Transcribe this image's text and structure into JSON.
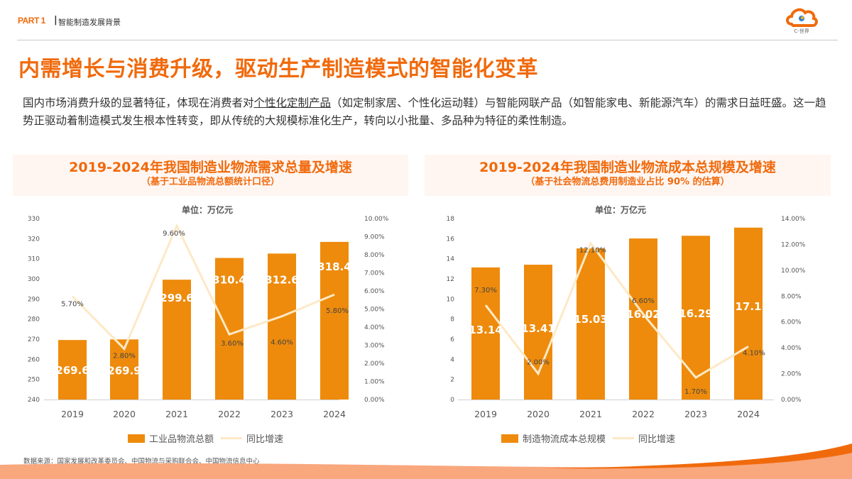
{
  "header": {
    "part": "PART 1",
    "separator": "|",
    "section": "智能制造发展背景"
  },
  "logo": {
    "text": "C-世界"
  },
  "title": "内需增长与消费升级，驱动生产制造模式的智能化变革",
  "paragraph": {
    "before": "国内市场消费升级的显著特征，体现在消费者对",
    "underlined": "个性化定制产品",
    "after": "（如定制家居、个性化运动鞋）与智能网联产品（如智能家电、新能源汽车）的需求日益旺盛。这一趋势正驱动着制造模式发生根本性转变，即从传统的大规模标准化生产，转向以小批量、多品种为特征的柔性制造。"
  },
  "colors": {
    "accent": "#f06a0c",
    "bar": "#ee8b0c",
    "line": "#fde9c6",
    "title_bg": "#fff6f2"
  },
  "source": "数据来源：国家发展和改革委员会、中国物流与采购联合会、中国物流信息中心",
  "chart_data": [
    {
      "type": "bar+line",
      "title": "2019-2024年我国制造业物流需求总量及增速",
      "subtitle": "（基于工业品物流总额统计口径）",
      "unit": "单位：万亿元",
      "categories": [
        "2019",
        "2020",
        "2021",
        "2022",
        "2023",
        "2024"
      ],
      "series": [
        {
          "name": "工业品物流总额",
          "type": "bar",
          "axis": "left",
          "values": [
            269.6,
            269.9,
            299.6,
            310.4,
            312.6,
            318.4
          ],
          "labels": [
            "269.6",
            "269.9",
            "299.6",
            "310.4",
            "312.6",
            "318.4"
          ]
        },
        {
          "name": "同比增速",
          "type": "line",
          "axis": "right",
          "values": [
            5.7,
            2.8,
            9.6,
            3.6,
            4.6,
            5.8
          ],
          "labels": [
            "5.70%",
            "2.80%",
            "9.60%",
            "3.60%",
            "4.60%",
            "5.80%"
          ]
        }
      ],
      "y_left": {
        "min": 240,
        "max": 330,
        "ticks": [
          "240",
          "250",
          "260",
          "270",
          "280",
          "290",
          "300",
          "310",
          "320",
          "330"
        ]
      },
      "y_right": {
        "min": 0,
        "max": 10,
        "ticks": [
          "0.00%",
          "1.00%",
          "2.00%",
          "3.00%",
          "4.00%",
          "5.00%",
          "6.00%",
          "7.00%",
          "8.00%",
          "9.00%",
          "10.00%"
        ]
      },
      "grid": false,
      "legend": "bottom"
    },
    {
      "type": "bar+line",
      "title": "2019-2024年我国制造业物流成本总规模及增速",
      "subtitle": "（基于社会物流总费用制造业占比 90% 的估算）",
      "unit": "单位：万亿元",
      "categories": [
        "2019",
        "2020",
        "2021",
        "2022",
        "2023",
        "2024"
      ],
      "series": [
        {
          "name": "制造物流成本总规模",
          "type": "bar",
          "axis": "left",
          "values": [
            13.14,
            13.41,
            15.03,
            16.02,
            16.29,
            17.1
          ],
          "labels": [
            "13.14",
            "13.41",
            "15.03",
            "16.02",
            "16.29",
            "17.1"
          ]
        },
        {
          "name": "同比增速",
          "type": "line",
          "axis": "right",
          "values": [
            7.3,
            2.0,
            12.1,
            6.6,
            1.7,
            4.1
          ],
          "labels": [
            "7.30%",
            "2.00%",
            "12.10%",
            "6.60%",
            "1.70%",
            "4.10%"
          ]
        }
      ],
      "y_left": {
        "min": 0,
        "max": 18,
        "ticks": [
          "0",
          "2",
          "4",
          "6",
          "8",
          "10",
          "12",
          "14",
          "16",
          "18"
        ]
      },
      "y_right": {
        "min": 0,
        "max": 14,
        "ticks": [
          "0.00%",
          "2.00%",
          "4.00%",
          "6.00%",
          "8.00%",
          "10.00%",
          "12.00%",
          "14.00%"
        ]
      },
      "grid": false,
      "legend": "bottom"
    }
  ]
}
